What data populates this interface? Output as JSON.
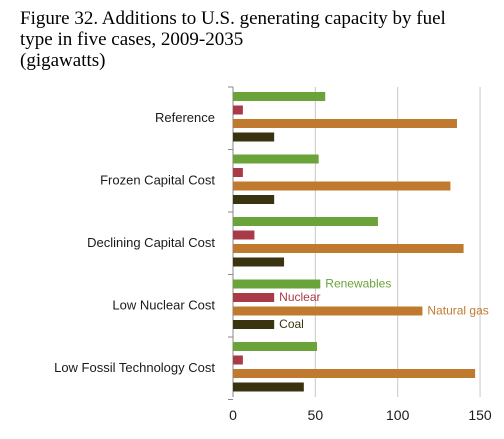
{
  "chart_data": {
    "type": "bar",
    "orientation": "horizontal",
    "title": "Figure 32. Additions to U.S. generating capacity by fuel type in five cases, 2009-2035",
    "subtitle": "(gigawatts)",
    "categories": [
      "Reference",
      "Frozen Capital Cost",
      "Declining Capital Cost",
      "Low Nuclear Cost",
      "Low Fossil Technology Cost"
    ],
    "series": [
      {
        "name": "Renewables",
        "color": "#6aa33a",
        "values": [
          56,
          52,
          88,
          53,
          51
        ]
      },
      {
        "name": "Nuclear",
        "color": "#a93a48",
        "values": [
          6,
          6,
          13,
          25,
          6
        ]
      },
      {
        "name": "Natural gas",
        "color": "#c07a30",
        "values": [
          136,
          132,
          140,
          115,
          147
        ]
      },
      {
        "name": "Coal",
        "color": "#3a330f",
        "values": [
          25,
          25,
          31,
          25,
          43
        ]
      }
    ],
    "xlim": [
      0,
      150
    ],
    "xticks": [
      "0",
      "50",
      "100",
      "150"
    ],
    "grid": "vertical",
    "legend": "inline labels on Low Nuclear Cost group"
  }
}
